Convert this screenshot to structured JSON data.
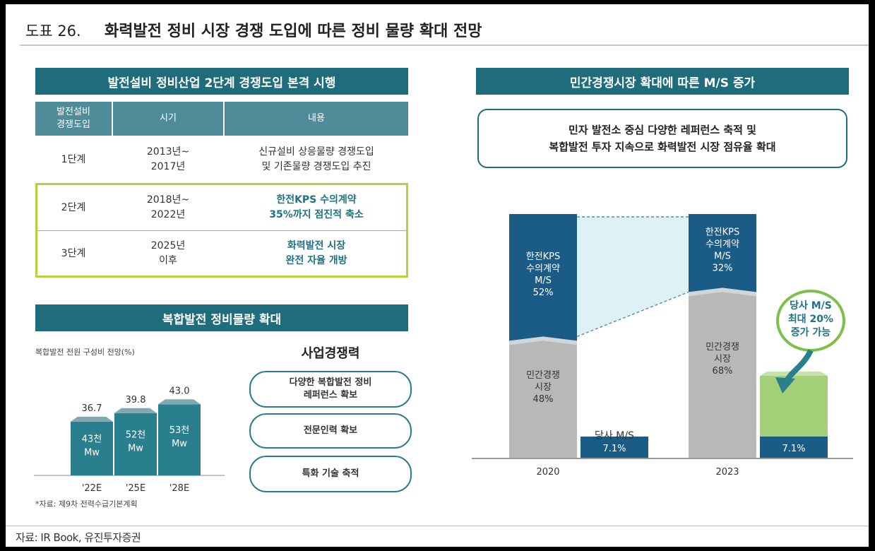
{
  "header": {
    "figure_number": "도표 26.",
    "title": "화력발전 정비 시장 경쟁 도입에 따른 정비 물량 확대 전망"
  },
  "left_top": {
    "banner": "발전설비 정비산업 2단계 경쟁도입 본격 시행",
    "headers": [
      "발전설비\n경쟁도입",
      "시기",
      "내용"
    ],
    "rows": [
      {
        "stage": "1단계",
        "period": "2013년~\n2017년",
        "content": "신규설비 상응물량 경쟁도입\n및 기존물량 경쟁도입 추진"
      },
      {
        "stage": "2단계",
        "period": "2018년~\n2022년",
        "content": "한전KPS 수의계약\n35%까지 점진적 축소"
      },
      {
        "stage": "3단계",
        "period": "2025년\n이후",
        "content": "화력발전 시장\n완전 자율 개방"
      }
    ]
  },
  "left_bottom": {
    "banner": "복합발전 정비물량 확대",
    "note": "*자료: 제9차 전력수급기본계획",
    "competitiveness_title": "사업경쟁력",
    "pills": [
      "다양한 복합발전 정비\n레퍼런스 확보",
      "전문인력 확보",
      "특화 기술 축적"
    ]
  },
  "chart_data": [
    {
      "type": "bar",
      "title": "복합발전 전원 구성비 전망(%)",
      "categories": [
        "'22E",
        "'25E",
        "'28E"
      ],
      "values": [
        36.7,
        39.8,
        43.0
      ],
      "value_labels": [
        "36.7",
        "39.8",
        "43.0"
      ],
      "bar_labels": [
        "43천\nMw",
        "52천\nMw",
        "53천\nMw"
      ],
      "color": "#2a7f8e"
    },
    {
      "type": "bar",
      "stacked": true,
      "title": "민간경쟁시장 확대에 따른 M/S 증가",
      "categories": [
        "2020",
        "2023"
      ],
      "series": [
        {
          "name": "민간경쟁 시장",
          "values": [
            48,
            68
          ],
          "labels": [
            "민간경쟁\n시장\n48%",
            "민간경쟁\n시장\n68%"
          ],
          "color": "#b8b8b8"
        },
        {
          "name": "한전KPS 수의계약 M/S",
          "values": [
            52,
            32
          ],
          "labels": [
            "한전KPS\n수의계약\nM/S\n52%",
            "한전KPS\n수의계약\nM/S\n32%"
          ],
          "color": "#1b5c86"
        }
      ],
      "company_ms": {
        "label": "당사 M/S",
        "values": [
          7.1,
          7.1
        ],
        "value_labels": [
          "7.1%",
          "7.1%"
        ],
        "color": "#1b5c86"
      },
      "projection": {
        "label": "당사 M/S\n최대 20%\n증가 가능",
        "value": 20,
        "color": "#a4d07a"
      },
      "ylim": [
        0,
        100
      ]
    }
  ],
  "right": {
    "banner": "민간경쟁시장 확대에 따른 M/S 증가",
    "callout": [
      "민자 발전소 중심 다양한 레퍼런스 축적 및",
      "복합발전 투자 지속으로 화력발전 시장 점유율 확대"
    ]
  },
  "footer": {
    "source": "자료: IR Book, 유진투자증권"
  }
}
